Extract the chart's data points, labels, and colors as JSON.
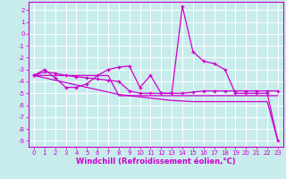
{
  "bg_color": "#c8ecec",
  "grid_color": "#ffffff",
  "line_color": "#cc00cc",
  "x": [
    0,
    1,
    2,
    3,
    4,
    5,
    6,
    7,
    8,
    9,
    10,
    11,
    12,
    13,
    14,
    15,
    16,
    17,
    18,
    19,
    20,
    21,
    22,
    23
  ],
  "y_main": [
    -3.5,
    -3.0,
    -3.7,
    -4.5,
    -4.5,
    -4.2,
    -3.5,
    -3.0,
    -2.8,
    -2.7,
    -4.5,
    -3.5,
    -5.0,
    -5.0,
    2.3,
    -1.5,
    -2.3,
    -2.5,
    -3.0,
    -5.0,
    -5.0,
    -5.0,
    -5.0,
    -9.0
  ],
  "y_smooth": [
    -3.5,
    -3.2,
    -3.3,
    -3.5,
    -3.6,
    -3.7,
    -3.8,
    -3.9,
    -4.0,
    -4.8,
    -5.0,
    -5.0,
    -5.0,
    -5.0,
    -5.0,
    -4.9,
    -4.8,
    -4.8,
    -4.8,
    -4.8,
    -4.8,
    -4.8,
    -4.8,
    -4.8
  ],
  "y_flat": [
    -3.5,
    -3.5,
    -3.5,
    -3.5,
    -3.5,
    -3.5,
    -3.5,
    -3.5,
    -5.2,
    -5.2,
    -5.2,
    -5.2,
    -5.2,
    -5.2,
    -5.2,
    -5.2,
    -5.2,
    -5.2,
    -5.2,
    -5.2,
    -5.2,
    -5.2,
    -5.2,
    -5.2
  ],
  "y_diag": [
    -3.5,
    -3.7,
    -3.9,
    -4.1,
    -4.3,
    -4.5,
    -4.7,
    -4.9,
    -5.1,
    -5.2,
    -5.3,
    -5.4,
    -5.5,
    -5.6,
    -5.65,
    -5.7,
    -5.7,
    -5.7,
    -5.7,
    -5.7,
    -5.7,
    -5.7,
    -5.7,
    -9.0
  ],
  "ylim": [
    -9.5,
    2.7
  ],
  "xlim": [
    -0.5,
    23.5
  ],
  "yticks": [
    2,
    1,
    0,
    -1,
    -2,
    -3,
    -4,
    -5,
    -6,
    -7,
    -8,
    -9
  ],
  "xticks": [
    0,
    1,
    2,
    3,
    4,
    5,
    6,
    7,
    8,
    9,
    10,
    11,
    12,
    13,
    14,
    15,
    16,
    17,
    18,
    19,
    20,
    21,
    22,
    23
  ],
  "xlabel": "Windchill (Refroidissement éolien,°C)",
  "tick_fontsize": 5.0,
  "xlabel_fontsize": 6.0,
  "linewidth": 0.9,
  "markersize": 3.5
}
